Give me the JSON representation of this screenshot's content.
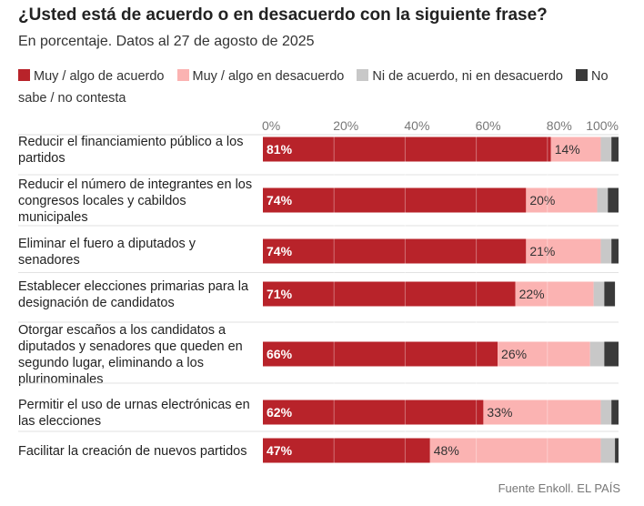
{
  "title": "¿Usted está de acuerdo o en desacuerdo con la siguiente frase?",
  "subtitle": "En porcentaje. Datos al 27 de agosto de 2025",
  "source": "Fuente Enkoll. EL PAÍS",
  "chart_data": {
    "type": "bar",
    "orientation": "horizontal",
    "stacked": true,
    "xlim": [
      0,
      100
    ],
    "tick_labels": [
      "0%",
      "20%",
      "40%",
      "60%",
      "80%",
      "100%"
    ],
    "grid": true,
    "legend_position": "top",
    "categories": [
      [
        "Reducir el financiamiento público a los",
        "partidos"
      ],
      [
        "Reducir el número de integrantes en los",
        "congresos locales y cabildos",
        "municipales"
      ],
      [
        "Eliminar el fuero a diputados y",
        "senadores"
      ],
      [
        "Establecer elecciones primarias para la",
        "designación de candidatos"
      ],
      [
        "Otorgar escaños a los candidatos a",
        "diputados y senadores que queden en",
        "segundo lugar, eliminando a los",
        "plurinominales"
      ],
      [
        "Permitir el uso de urnas electrónicas en",
        "las elecciones"
      ],
      [
        "Facilitar la creación de nuevos partidos"
      ]
    ],
    "series": [
      {
        "name": "Muy / algo de acuerdo",
        "color": "#b8232a",
        "label_color": "#ffffff",
        "values": [
          81,
          74,
          74,
          71,
          66,
          62,
          47
        ],
        "labels": [
          "81%",
          "74%",
          "74%",
          "71%",
          "66%",
          "62%",
          "47%"
        ]
      },
      {
        "name": "Muy / algo en desacuerdo",
        "color": "#fbb3b2",
        "label_color": "#333333",
        "values": [
          14,
          20,
          21,
          22,
          26,
          33,
          48
        ],
        "labels": [
          "14%",
          "20%",
          "21%",
          "22%",
          "26%",
          "33%",
          "48%"
        ]
      },
      {
        "name": "Ni de acuerdo, ni en desacuerdo",
        "color": "#c8c8c8",
        "values": [
          3,
          3,
          3,
          3,
          4,
          3,
          4
        ]
      },
      {
        "name": "No sabe / no contesta",
        "color": "#3a3a3a",
        "values": [
          2,
          3,
          2,
          3,
          4,
          2,
          1
        ]
      }
    ]
  }
}
